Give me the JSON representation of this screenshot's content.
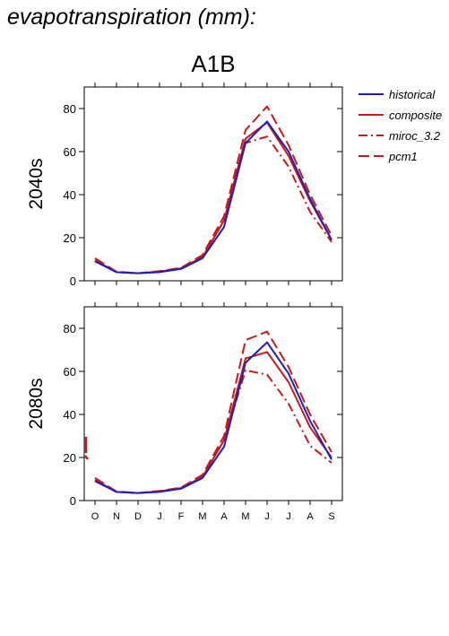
{
  "header": {
    "text": "evapotranspiration (mm):"
  },
  "scenario_title": "A1B",
  "legend": [
    "historical",
    "composite",
    "miroc_3.2",
    "pcm1"
  ],
  "colors": {
    "historical": "#1f1fbf",
    "composite": "#c41a1a",
    "miroc_3.2": "#c41a1a",
    "pcm1": "#c41a1a"
  },
  "chart_data": [
    {
      "type": "line",
      "panel_label": "2040s",
      "title": "A1B",
      "categories": [
        "O",
        "N",
        "D",
        "J",
        "F",
        "M",
        "A",
        "M",
        "J",
        "J",
        "A",
        "S"
      ],
      "ylim": [
        0,
        90
      ],
      "yticks": [
        0,
        20,
        40,
        60,
        80
      ],
      "grid": false,
      "legend_position": "right",
      "series": [
        {
          "name": "historical",
          "style": "solid",
          "values": [
            9,
            4,
            3.5,
            4,
            5.5,
            10.5,
            25,
            64,
            74,
            60,
            38,
            19
          ]
        },
        {
          "name": "composite",
          "style": "solid",
          "values": [
            9.5,
            4,
            3.5,
            4.2,
            5.8,
            11,
            28,
            66,
            73.5,
            58,
            37,
            19
          ]
        },
        {
          "name": "miroc_3.2",
          "style": "dashdot",
          "values": [
            9.5,
            4,
            3.5,
            4.2,
            5.8,
            11,
            28,
            64,
            67,
            53,
            32,
            18
          ]
        },
        {
          "name": "pcm1",
          "style": "dashed",
          "values": [
            10.5,
            4.2,
            3.5,
            4.5,
            6,
            12,
            30,
            70,
            81,
            63,
            40,
            21
          ]
        }
      ]
    },
    {
      "type": "line",
      "panel_label": "2080s",
      "categories": [
        "O",
        "N",
        "D",
        "J",
        "F",
        "M",
        "A",
        "M",
        "J",
        "J",
        "A",
        "S"
      ],
      "ylim": [
        0,
        90
      ],
      "yticks": [
        0,
        20,
        40,
        60,
        80
      ],
      "grid": false,
      "series": [
        {
          "name": "historical",
          "style": "solid",
          "values": [
            9,
            4,
            3.5,
            4,
            5.5,
            10.5,
            25,
            64,
            73.5,
            59,
            37,
            19
          ]
        },
        {
          "name": "composite",
          "style": "solid",
          "values": [
            9.5,
            4,
            3.5,
            4.2,
            5.8,
            11,
            28,
            66,
            69,
            55,
            34,
            20
          ]
        },
        {
          "name": "miroc_3.2",
          "style": "dashdot",
          "values": [
            9.5,
            4,
            3.5,
            4.2,
            5.8,
            11,
            28,
            60.5,
            58.5,
            45,
            25.5,
            17.5
          ]
        },
        {
          "name": "pcm1",
          "style": "dashed",
          "values": [
            10.5,
            4.2,
            3.5,
            4.5,
            6,
            12,
            30,
            74.5,
            78.5,
            62,
            40,
            22.5
          ]
        }
      ]
    }
  ]
}
